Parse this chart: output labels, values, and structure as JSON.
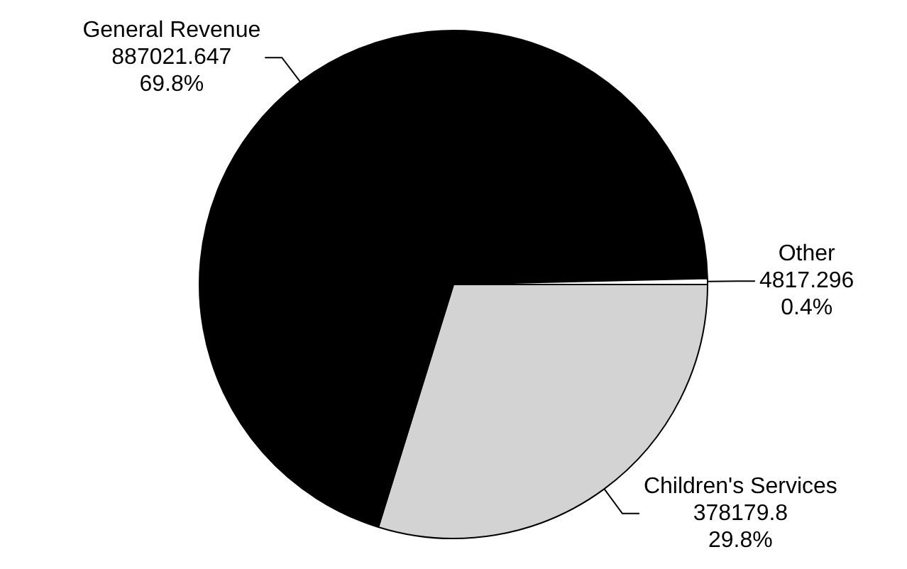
{
  "chart_data": {
    "type": "pie",
    "categories": [
      "Children's Services",
      "General Revenue",
      "Other"
    ],
    "values": [
      378179.8,
      887021.647,
      4817.296
    ],
    "colors": [
      "#d3d3d3",
      "#000000",
      "#ffffff"
    ],
    "value_labels": [
      "378179.8\n29.8%",
      "887021.647\n69.8%",
      "4817.296\n0.4%"
    ],
    "legend": false
  }
}
